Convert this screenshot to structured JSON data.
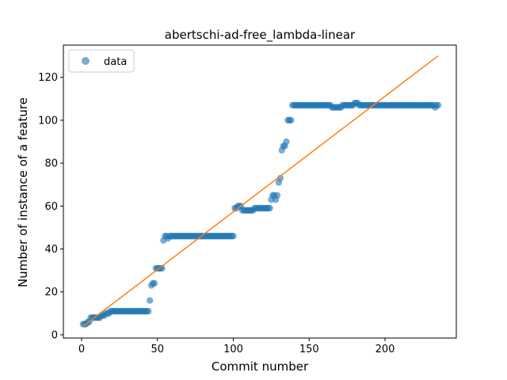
{
  "chart_data": {
    "type": "scatter",
    "title": "abertschi-ad-free_lambda-linear",
    "xlabel": "Commit number",
    "ylabel": "Number of instance of a feature",
    "xlim": [
      -12,
      247
    ],
    "ylim": [
      -1.5,
      135
    ],
    "xticks": [
      0,
      50,
      100,
      150,
      200
    ],
    "yticks": [
      0,
      20,
      40,
      60,
      80,
      100,
      120
    ],
    "grid": false,
    "legend": {
      "placement": "top-left",
      "entries": [
        "data"
      ]
    },
    "colors": {
      "points": "#1f77b4",
      "fit_line": "#ff7f0e"
    },
    "steps": [
      [
        1,
        5
      ],
      [
        4,
        6
      ],
      [
        6,
        8
      ],
      [
        11,
        8
      ],
      [
        13,
        9
      ],
      [
        16,
        10
      ],
      [
        19,
        11
      ],
      [
        45,
        16
      ],
      [
        46,
        23
      ],
      [
        47,
        24
      ],
      [
        49,
        31
      ],
      [
        54,
        44
      ],
      [
        55,
        46
      ],
      [
        57,
        45
      ],
      [
        58,
        46
      ],
      [
        101,
        59
      ],
      [
        103,
        60
      ],
      [
        106,
        58
      ],
      [
        114,
        59
      ],
      [
        125,
        63
      ],
      [
        126,
        65
      ],
      [
        128,
        63
      ],
      [
        129,
        65
      ],
      [
        130,
        71
      ],
      [
        131,
        73
      ],
      [
        132,
        86
      ],
      [
        133,
        88
      ],
      [
        135,
        90
      ],
      [
        136,
        100
      ],
      [
        139,
        107
      ],
      [
        165,
        106
      ],
      [
        172,
        107
      ],
      [
        180,
        108
      ],
      [
        183,
        107
      ],
      [
        233,
        106
      ],
      [
        234,
        107
      ],
      [
        235,
        107
      ]
    ],
    "fit_line": {
      "x": [
        1,
        235
      ],
      "y": [
        4,
        130
      ]
    }
  }
}
